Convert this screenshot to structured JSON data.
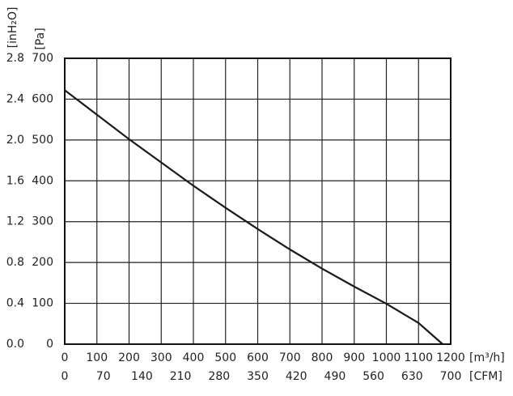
{
  "chart_data": {
    "type": "line",
    "xlabel": "[m³/h]",
    "x2label": "[CFM]",
    "ylabel": "[Pa]",
    "y2label": "[inH₂O]",
    "x": [
      0,
      100,
      200,
      300,
      400,
      500,
      600,
      700,
      800,
      900,
      1000,
      1100,
      1175
    ],
    "series": [
      {
        "name": "Pressure",
        "color": "#1a1a1a",
        "values": [
          622,
          562,
          502,
          445,
          388,
          334,
          282,
          232,
          185,
          141,
          99,
          52,
          0
        ]
      }
    ],
    "xlim": [
      0,
      1200
    ],
    "xticks": [
      0,
      100,
      200,
      300,
      400,
      500,
      600,
      700,
      800,
      900,
      1000,
      1100,
      1200
    ],
    "x2lim": [
      0,
      700
    ],
    "x2ticks": [
      0,
      70,
      140,
      210,
      280,
      350,
      420,
      490,
      560,
      630,
      700
    ],
    "ylim": [
      0,
      700
    ],
    "yticks": [
      0,
      100,
      200,
      300,
      400,
      500,
      600,
      700
    ],
    "y2lim": [
      0,
      2.8
    ],
    "y2ticks": [
      {
        "value": 0,
        "label": "0.0"
      },
      0.4,
      0.8,
      1.2,
      1.6,
      {
        "value": 2,
        "label": "2.0"
      },
      2.4,
      2.8
    ],
    "grid": true
  }
}
